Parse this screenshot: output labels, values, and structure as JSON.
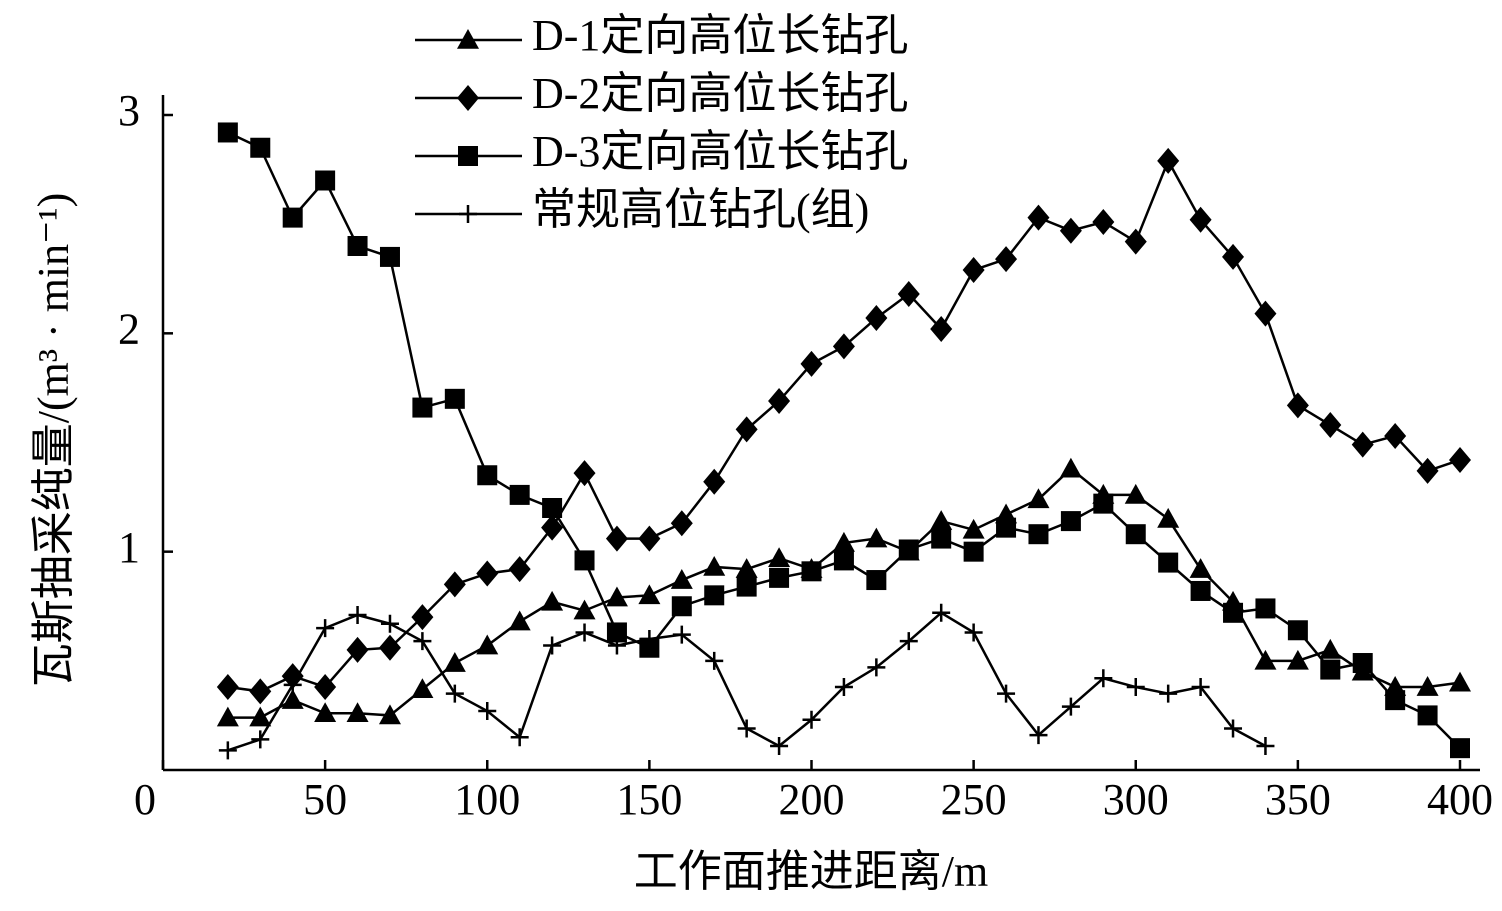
{
  "chart_data": {
    "type": "line",
    "xlabel": "工作面推进距离/m",
    "ylabel": "瓦斯抽采纯量/(m³ · min⁻¹)",
    "x": [
      20,
      30,
      40,
      50,
      60,
      70,
      80,
      90,
      100,
      110,
      120,
      130,
      140,
      150,
      160,
      170,
      180,
      190,
      200,
      210,
      220,
      230,
      240,
      250,
      260,
      270,
      280,
      290,
      300,
      310,
      320,
      330,
      340,
      350,
      360,
      370,
      380,
      390,
      400
    ],
    "xlim": [
      0,
      400
    ],
    "xticks": [
      0,
      50,
      100,
      150,
      200,
      250,
      300,
      350,
      400
    ],
    "ylim": [
      0,
      3
    ],
    "yticks": [
      1,
      2,
      3
    ],
    "series": [
      {
        "name": "D-1定向高位长钻孔",
        "color": "#000000",
        "marker": "triangle",
        "values": [
          0.24,
          0.24,
          0.32,
          0.26,
          0.26,
          0.25,
          0.37,
          0.49,
          0.57,
          0.68,
          0.77,
          0.73,
          0.79,
          0.8,
          0.87,
          0.93,
          0.92,
          0.97,
          0.92,
          1.04,
          1.06,
          1.0,
          1.14,
          1.1,
          1.17,
          1.24,
          1.38,
          1.26,
          1.26,
          1.15,
          0.92,
          0.77,
          0.5,
          0.5,
          0.55,
          0.45,
          0.38,
          0.38,
          0.4
        ]
      },
      {
        "name": "D-2定向高位长钻孔",
        "color": "#000000",
        "marker": "diamond",
        "values": [
          0.38,
          0.36,
          0.43,
          0.38,
          0.55,
          0.56,
          0.7,
          0.85,
          0.9,
          0.92,
          1.11,
          1.36,
          1.06,
          1.06,
          1.13,
          1.32,
          1.56,
          1.69,
          1.86,
          1.94,
          2.07,
          2.18,
          2.02,
          2.29,
          2.34,
          2.53,
          2.47,
          2.51,
          2.42,
          2.79,
          2.52,
          2.35,
          2.09,
          1.67,
          1.58,
          1.49,
          1.53,
          1.37,
          1.42
        ]
      },
      {
        "name": "D-3定向高位长钻孔",
        "color": "#000000",
        "marker": "square",
        "values": [
          2.92,
          2.85,
          2.53,
          2.7,
          2.4,
          2.35,
          1.66,
          1.7,
          1.35,
          1.26,
          1.2,
          0.96,
          0.63,
          0.56,
          0.75,
          0.8,
          0.84,
          0.88,
          0.91,
          0.96,
          0.87,
          1.01,
          1.06,
          1.0,
          1.11,
          1.08,
          1.14,
          1.22,
          1.08,
          0.95,
          0.82,
          0.72,
          0.74,
          0.64,
          0.46,
          0.49,
          0.32,
          0.25,
          0.1
        ]
      },
      {
        "name": "常规高位钻孔(组)",
        "color": "#000000",
        "marker": "plus",
        "values": [
          0.09,
          0.14,
          0.39,
          0.65,
          0.71,
          0.67,
          0.59,
          0.35,
          0.27,
          0.15,
          0.57,
          0.63,
          0.57,
          0.6,
          0.62,
          0.5,
          0.19,
          0.11,
          0.23,
          0.38,
          0.47,
          0.59,
          0.72,
          0.63,
          0.35,
          0.16,
          0.29,
          0.42,
          0.38,
          0.35,
          0.38,
          0.19,
          0.11,
          null,
          null,
          null,
          null,
          null,
          null
        ]
      }
    ]
  }
}
